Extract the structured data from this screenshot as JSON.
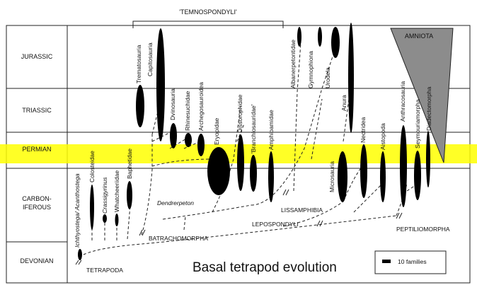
{
  "title": "Basal tetrapod evolution",
  "group_label": "'TEMNOSPONDYLI'",
  "amniota_label": "AMNIOTA",
  "legend_label": "10 families",
  "periods": [
    "JURASSIC",
    "TRIASSIC",
    "PERMIAN",
    "CARBON-",
    "IFEROUS",
    "DEVONIAN"
  ],
  "clade_labels": {
    "tetrapoda": "TETRAPODA",
    "batrachomorpha": "BATRACHOMORPHA",
    "lepospondyli": "LEPOSPONDYLI",
    "lissamphibia": "LISSAMPHIBIA",
    "peptiliomorpha": "PEPTILIOMORPHA"
  },
  "taxa": {
    "ichthyostega": "Ichthyostega/ Acanthostega",
    "colosteidae": "Colosteidae",
    "crassigyrinus": "Crassigyrinus",
    "whatcheeriidae": "Whatcheeriidae",
    "baphetidae": "Baphetidae",
    "dendrerpeton": "Dendrerpeton",
    "trematosauria": "Trematosauria",
    "capitosauria": "Capitosauria",
    "dvinosauria": "Dvinosauria",
    "rhinesuchidae": "Rhinesuchidae",
    "archegosauroidea": "Archegosauroidea",
    "eryopidae": "Eryopidae",
    "dissorophidae": "Dissorophidae",
    "branchiosauridae": "'Branchiosauridae'",
    "amphibamidae": "Amphibamidae",
    "albanerpetontidae": "Albanerpetontidae",
    "gymnophiona": "Gymnophiona",
    "urodela": "Urodela",
    "anura": "Anura",
    "microsauria": "Microsauria",
    "nectridea": "Nectridea",
    "aistopoda": "Aistopoda",
    "anthracosauria": "Anthracosauria",
    "seymouriamorpha": "Seymouriamorpha",
    "diadectomorpha": "Diadectomorpha"
  },
  "colors": {
    "highlight": "#ffff00",
    "amniota_fill": "#8c8c8c",
    "spindle": "#000000"
  }
}
